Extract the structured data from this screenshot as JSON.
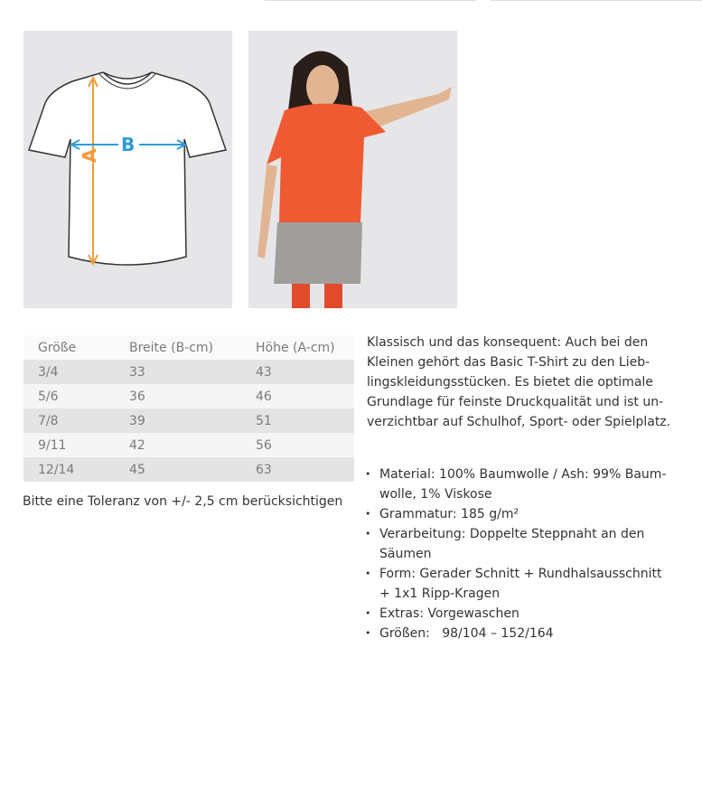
{
  "diagram": {
    "label_a": "A",
    "label_b": "B",
    "color_a": "#f39a3a",
    "color_b": "#2d9cdb"
  },
  "size_table": {
    "headers": [
      "Größe",
      "Breite (B-cm)",
      "Höhe (A-cm)"
    ],
    "rows": [
      [
        "3/4",
        "33",
        "43"
      ],
      [
        "5/6",
        "36",
        "46"
      ],
      [
        "7/8",
        "39",
        "51"
      ],
      [
        "9/11",
        "42",
        "56"
      ],
      [
        "12/14",
        "45",
        "63"
      ]
    ]
  },
  "tolerance_note": "Bitte eine Toleranz von +/- 2,5 cm berücksichtigen",
  "description_lines": [
    "Klassisch und das konsequent: Auch bei den",
    "Kleinen gehört das Basic T-Shirt zu den Lieb-",
    "lingskleidungsstücken. Es bietet die optimale",
    "Grundlage für feinste Druckqualität und ist un-",
    "verzichtbar auf Schulhof, Sport- oder Spielplatz."
  ],
  "features": [
    [
      "Material: 100% Baumwolle / Ash: 99% Baum-",
      "wolle, 1% Viskose"
    ],
    [
      "Grammatur: 185 g/m²"
    ],
    [
      "Verarbeitung: Doppelte Steppnaht an den",
      "Säumen"
    ],
    [
      "Form: Gerader Schnitt + Rundhalsausschnitt",
      "+ 1x1 Ripp-Kragen"
    ],
    [
      "Extras: Vorgewaschen"
    ],
    [
      "Größen:   98/104 – 152/164"
    ]
  ]
}
